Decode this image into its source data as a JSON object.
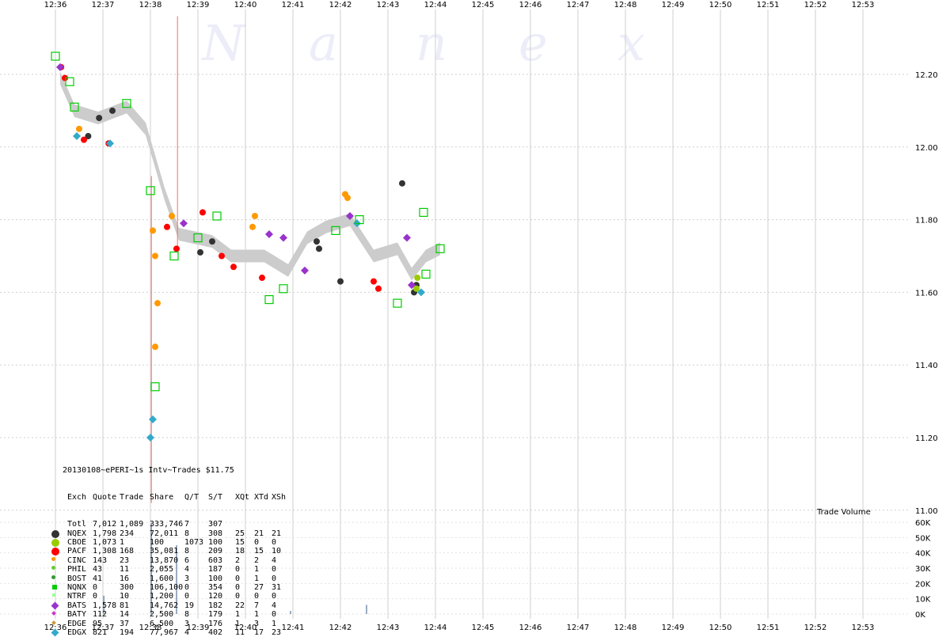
{
  "watermark": {
    "letters": [
      "N",
      "a",
      "n",
      "e",
      "x"
    ]
  },
  "chart_data": {
    "type": "scatter",
    "x_tick_labels": [
      "12:36",
      "12:37",
      "12:38",
      "12:39",
      "12:40",
      "12:41",
      "12:42",
      "12:43",
      "12:44",
      "12:45",
      "12:46",
      "12:47",
      "12:48",
      "12:49",
      "12:50",
      "12:51",
      "12:52",
      "12:53"
    ],
    "price_axis": {
      "ticks": [
        "11.00",
        "11.20",
        "11.40",
        "11.60",
        "11.80",
        "12.00",
        "12.20"
      ],
      "ylim": [
        11.0,
        12.2
      ]
    },
    "volume_axis": {
      "label": "Trade Volume",
      "ticks": [
        "0K",
        "10K",
        "20K",
        "30K",
        "40K",
        "50K",
        "60K"
      ],
      "ylim": [
        0,
        60000
      ]
    },
    "grid": true,
    "series": [
      {
        "name": "NQEX",
        "color": "#333333",
        "shape": "circle-filled",
        "points": [
          [
            12.69,
            12.03
          ],
          [
            12.92,
            12.08
          ],
          [
            13.2,
            12.1
          ],
          [
            15.05,
            11.71
          ],
          [
            15.3,
            11.74
          ],
          [
            17.5,
            11.74
          ],
          [
            17.55,
            11.72
          ],
          [
            18.0,
            11.63
          ],
          [
            19.3,
            11.9
          ],
          [
            19.55,
            11.6
          ],
          [
            19.6,
            11.62
          ]
        ]
      },
      {
        "name": "CBOE",
        "color": "#99cc00",
        "shape": "circle-filled",
        "points": [
          [
            19.6,
            11.61
          ],
          [
            19.62,
            11.64
          ]
        ]
      },
      {
        "name": "PACF",
        "color": "#ff0000",
        "shape": "circle-filled",
        "points": [
          [
            12.12,
            12.22
          ],
          [
            12.2,
            12.19
          ],
          [
            12.6,
            12.02
          ],
          [
            13.12,
            12.01
          ],
          [
            14.35,
            11.78
          ],
          [
            14.55,
            11.72
          ],
          [
            15.1,
            11.82
          ],
          [
            15.5,
            11.7
          ],
          [
            15.75,
            11.67
          ],
          [
            16.35,
            11.64
          ],
          [
            18.7,
            11.63
          ],
          [
            18.8,
            11.61
          ]
        ]
      },
      {
        "name": "CINC",
        "color": "#ff9900",
        "shape": "circle-filled",
        "points": [
          [
            12.5,
            12.05
          ],
          [
            14.05,
            11.77
          ],
          [
            14.1,
            11.7
          ],
          [
            14.15,
            11.57
          ],
          [
            14.1,
            11.45
          ],
          [
            14.45,
            11.81
          ],
          [
            16.15,
            11.78
          ],
          [
            16.2,
            11.81
          ],
          [
            18.1,
            11.87
          ],
          [
            18.15,
            11.86
          ]
        ]
      },
      {
        "name": "BATS",
        "color": "#9933cc",
        "shape": "diamond-filled",
        "points": [
          [
            12.1,
            12.22
          ],
          [
            14.7,
            11.79
          ],
          [
            16.5,
            11.76
          ],
          [
            16.8,
            11.75
          ],
          [
            17.25,
            11.66
          ],
          [
            18.2,
            11.81
          ],
          [
            19.4,
            11.75
          ],
          [
            19.5,
            11.62
          ]
        ]
      },
      {
        "name": "EDGX",
        "color": "#33aacc",
        "shape": "diamond-filled",
        "points": [
          [
            12.45,
            12.03
          ],
          [
            13.15,
            12.01
          ],
          [
            14.0,
            11.2
          ],
          [
            14.05,
            11.25
          ],
          [
            18.35,
            11.79
          ],
          [
            19.7,
            11.6
          ]
        ]
      },
      {
        "name": "NQNX",
        "color": "#00cc00",
        "shape": "square-outline",
        "points": [
          [
            12.0,
            12.25
          ],
          [
            12.3,
            12.18
          ],
          [
            12.4,
            12.11
          ],
          [
            13.5,
            12.12
          ],
          [
            14.0,
            11.88
          ],
          [
            14.1,
            11.34
          ],
          [
            14.5,
            11.7
          ],
          [
            15.0,
            11.75
          ],
          [
            15.4,
            11.81
          ],
          [
            16.5,
            11.58
          ],
          [
            16.8,
            11.61
          ],
          [
            17.9,
            11.77
          ],
          [
            18.4,
            11.8
          ],
          [
            19.75,
            11.82
          ],
          [
            19.2,
            11.57
          ],
          [
            19.8,
            11.65
          ],
          [
            20.1,
            11.72
          ]
        ]
      }
    ],
    "volume_spikes": [
      [
        13.02,
        12000
      ],
      [
        14.02,
        59000
      ],
      [
        14.55,
        45000
      ],
      [
        16.95,
        2000
      ],
      [
        18.55,
        6000
      ]
    ],
    "inside_market_band": [
      [
        12.1,
        12.19
      ],
      [
        12.4,
        12.1
      ],
      [
        12.9,
        12.08
      ],
      [
        13.5,
        12.11
      ],
      [
        13.9,
        12.05
      ],
      [
        14.3,
        11.87
      ],
      [
        14.6,
        11.76
      ],
      [
        15.3,
        11.74
      ],
      [
        15.7,
        11.7
      ],
      [
        16.4,
        11.7
      ],
      [
        16.9,
        11.66
      ],
      [
        17.3,
        11.75
      ],
      [
        17.7,
        11.78
      ],
      [
        18.2,
        11.8
      ],
      [
        18.7,
        11.7
      ],
      [
        19.2,
        11.72
      ],
      [
        19.5,
        11.65
      ],
      [
        19.8,
        11.7
      ],
      [
        20.1,
        11.72
      ]
    ]
  },
  "stats_table": {
    "title": "20130108~ePERI~1s Intv~Trades $11.75",
    "header": [
      "Exch",
      "Quote",
      "Trade",
      "Share",
      "Q/T",
      "S/T",
      "XQt",
      "XTd",
      "XSh"
    ],
    "rows": [
      {
        "exch": "Totl",
        "quote": "7,012",
        "trade": "1,089",
        "share": "333,746",
        "qt": "7",
        "st": "307",
        "xqt": "",
        "xtd": "",
        "xsh": "",
        "color": "",
        "shape": "none"
      },
      {
        "exch": "NQEX",
        "quote": "1,798",
        "trade": "234",
        "share": "72,011",
        "qt": "8",
        "st": "308",
        "xqt": "25",
        "xtd": "21",
        "xsh": "21",
        "color": "#333333",
        "shape": "circle-big"
      },
      {
        "exch": "CBOE",
        "quote": "1,073",
        "trade": "1",
        "share": "100",
        "qt": "1073",
        "st": "100",
        "xqt": "15",
        "xtd": "0",
        "xsh": "0",
        "color": "#99cc00",
        "shape": "circle-big"
      },
      {
        "exch": "PACF",
        "quote": "1,308",
        "trade": "168",
        "share": "35,081",
        "qt": "8",
        "st": "209",
        "xqt": "18",
        "xtd": "15",
        "xsh": "10",
        "color": "#ff0000",
        "shape": "circle-big"
      },
      {
        "exch": "CINC",
        "quote": "143",
        "trade": "23",
        "share": "13,870",
        "qt": "6",
        "st": "603",
        "xqt": "2",
        "xtd": "2",
        "xsh": "4",
        "color": "#ff9900",
        "shape": "circle-small"
      },
      {
        "exch": "PHIL",
        "quote": "43",
        "trade": "11",
        "share": "2,055",
        "qt": "4",
        "st": "187",
        "xqt": "0",
        "xtd": "1",
        "xsh": "0",
        "color": "#66cc33",
        "shape": "circle-small"
      },
      {
        "exch": "BOST",
        "quote": "41",
        "trade": "16",
        "share": "1,600",
        "qt": "3",
        "st": "100",
        "xqt": "0",
        "xtd": "1",
        "xsh": "0",
        "color": "#339933",
        "shape": "circle-small"
      },
      {
        "exch": "NQNX",
        "quote": "0",
        "trade": "300",
        "share": "106,100",
        "qt": "0",
        "st": "354",
        "xqt": "0",
        "xtd": "27",
        "xsh": "31",
        "color": "#00cc00",
        "shape": "square"
      },
      {
        "exch": "NTRF",
        "quote": "0",
        "trade": "10",
        "share": "1,200",
        "qt": "0",
        "st": "120",
        "xqt": "0",
        "xtd": "0",
        "xsh": "0",
        "color": "#99ff99",
        "shape": "square-small"
      },
      {
        "exch": "BATS",
        "quote": "1,578",
        "trade": "81",
        "share": "14,762",
        "qt": "19",
        "st": "182",
        "xqt": "22",
        "xtd": "7",
        "xsh": "4",
        "color": "#9933cc",
        "shape": "diamond-big"
      },
      {
        "exch": "BATY",
        "quote": "112",
        "trade": "14",
        "share": "2,500",
        "qt": "8",
        "st": "179",
        "xqt": "1",
        "xtd": "1",
        "xsh": "0",
        "color": "#cc33cc",
        "shape": "diamond-small"
      },
      {
        "exch": "EDGE",
        "quote": "95",
        "trade": "37",
        "share": "6,500",
        "qt": "3",
        "st": "176",
        "xqt": "1",
        "xtd": "3",
        "xsh": "1",
        "color": "#cc9933",
        "shape": "diamond-small"
      },
      {
        "exch": "EDGX",
        "quote": "821",
        "trade": "194",
        "share": "77,967",
        "qt": "4",
        "st": "402",
        "xqt": "11",
        "xtd": "17",
        "xsh": "23",
        "color": "#33aacc",
        "shape": "diamond-big"
      }
    ]
  }
}
